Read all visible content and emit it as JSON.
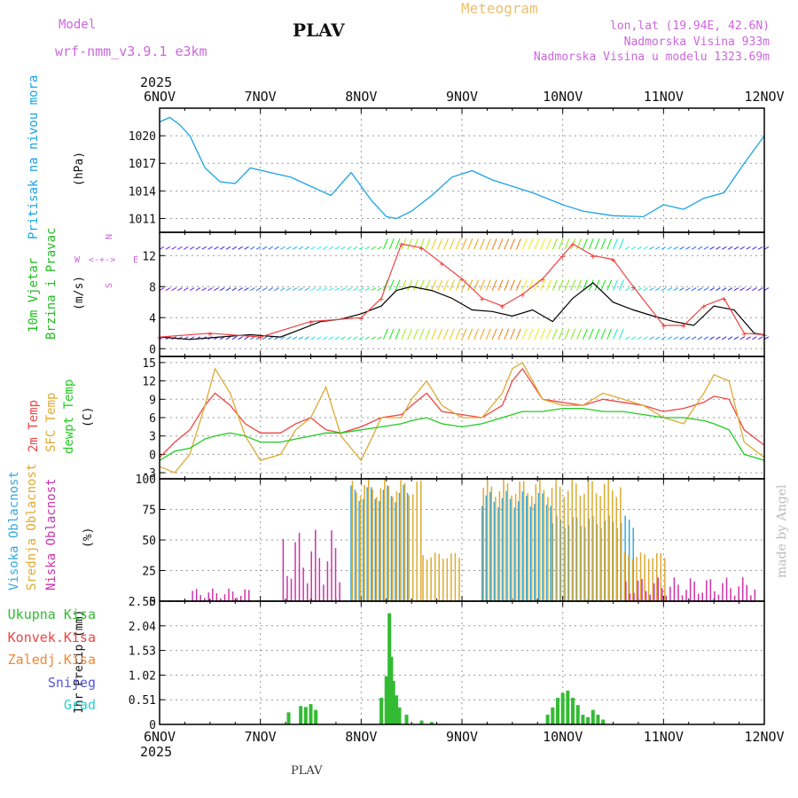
{
  "header": {
    "model_label": "Model",
    "model_name": "wrf-nmm_v3.9.1 e3km",
    "station": "PLAV",
    "title": "Meteogram",
    "lonlat": "lon,lat (19.94E, 42.6N)",
    "elevation": "Nadmorska Visina 933m",
    "model_elevation": "Nadmorska Visina u modelu 1323.69m",
    "footer_station": "PLAV",
    "credit": "made by Angel"
  },
  "colors": {
    "pressure": "#1aa3e6",
    "wind_label": "#22bb22",
    "temp2m": "#ee4444",
    "sfc_temp": "#ddaa33",
    "dewpt": "#22cc22",
    "high_cloud": "#33aadd",
    "mid_cloud": "#ddaa33",
    "low_cloud": "#cc33aa",
    "precip_total": "#33bb33",
    "precip_conv": "#ee4444",
    "precip_frozen": "#ee8833",
    "snow": "#5555dd",
    "hail": "#33cccc",
    "axis_label": "#cc66dd"
  },
  "axis": {
    "year": "2025",
    "days": [
      "6NOV",
      "7NOV",
      "8NOV",
      "9NOV",
      "10NOV",
      "11NOV",
      "12NOV"
    ]
  },
  "chart_data": [
    {
      "type": "line",
      "panel": "pressure",
      "title": "Pritisak na nivou mora",
      "ylabel": "(hPa)",
      "yticks": [
        "1020",
        "1017",
        "1014",
        "1011"
      ],
      "ylim": [
        1009.5,
        1023
      ],
      "x_days": [
        0,
        0.1,
        0.2,
        0.3,
        0.45,
        0.6,
        0.75,
        0.9,
        1.1,
        1.3,
        1.5,
        1.7,
        1.9,
        2.1,
        2.25,
        2.35,
        2.5,
        2.7,
        2.9,
        3.1,
        3.3,
        3.5,
        3.7,
        4.0,
        4.2,
        4.5,
        4.8,
        5.0,
        5.2,
        5.4,
        5.6,
        5.8,
        6.0
      ],
      "values": [
        1021.5,
        1022,
        1021.2,
        1020,
        1016.5,
        1015,
        1014.8,
        1016.5,
        1016,
        1015.5,
        1014.5,
        1013.5,
        1016,
        1013,
        1011.2,
        1011,
        1011.8,
        1013.5,
        1015.5,
        1016.2,
        1015.2,
        1014.5,
        1013.8,
        1012.5,
        1011.8,
        1011.3,
        1011.2,
        1012.5,
        1012,
        1013.2,
        1013.8,
        1017,
        1020
      ]
    },
    {
      "type": "line",
      "panel": "wind",
      "title": "10m Vjetar",
      "subtitle": "Brzina i Pravac",
      "ylabel": "(m/s)",
      "compass": [
        "N",
        "W",
        "E",
        "S"
      ],
      "yticks": [
        "12",
        "8",
        "4",
        "0"
      ],
      "ylim": [
        -1,
        15
      ],
      "x_days": [
        0,
        0.3,
        0.6,
        0.9,
        1.2,
        1.4,
        1.6,
        1.8,
        2.0,
        2.2,
        2.35,
        2.5,
        2.7,
        2.9,
        3.1,
        3.3,
        3.5,
        3.7,
        3.9,
        4.1,
        4.3,
        4.5,
        4.7,
        4.9,
        5.1,
        5.3,
        5.5,
        5.7,
        5.9,
        6.0
      ],
      "values": [
        1.5,
        1.2,
        1.5,
        1.8,
        1.5,
        2.5,
        3.5,
        3.8,
        4.5,
        5.5,
        7.5,
        8.0,
        7.5,
        6.5,
        5.0,
        4.8,
        4.2,
        5.0,
        3.5,
        6.5,
        8.5,
        6.0,
        5.0,
        4.2,
        3.5,
        3.0,
        5.5,
        5.0,
        2.0,
        1.8
      ],
      "gust_x_days": [
        0,
        0.5,
        1.0,
        1.5,
        2.0,
        2.2,
        2.4,
        2.6,
        2.8,
        3.0,
        3.2,
        3.4,
        3.6,
        3.8,
        4.0,
        4.1,
        4.3,
        4.5,
        4.7,
        5.0,
        5.2,
        5.4,
        5.6,
        5.8,
        6.0
      ],
      "gust_values": [
        1.5,
        2.0,
        1.5,
        3.5,
        4.0,
        6.5,
        13.5,
        13.0,
        11.0,
        9.0,
        6.5,
        5.5,
        7.0,
        9.0,
        12.0,
        13.5,
        12.0,
        11.5,
        8.0,
        3.0,
        3.0,
        5.5,
        6.5,
        2.0,
        1.8
      ]
    },
    {
      "type": "line",
      "panel": "temperature",
      "ylabel": "(C)",
      "yticks": [
        "15",
        "12",
        "9",
        "6",
        "3",
        "0",
        "-3"
      ],
      "ylim": [
        -4,
        16
      ],
      "x_days": [
        0,
        0.15,
        0.3,
        0.45,
        0.55,
        0.7,
        0.85,
        1.0,
        1.2,
        1.35,
        1.5,
        1.65,
        1.8,
        2.0,
        2.2,
        2.4,
        2.5,
        2.65,
        2.8,
        3.0,
        3.2,
        3.4,
        3.5,
        3.6,
        3.8,
        4.0,
        4.2,
        4.4,
        4.6,
        4.8,
        5.0,
        5.2,
        5.4,
        5.5,
        5.65,
        5.8,
        6.0
      ],
      "series": [
        {
          "name": "2m Temp",
          "values": [
            -0.5,
            2,
            4,
            8,
            10,
            8,
            5,
            3.5,
            3.5,
            5,
            6,
            4,
            3.5,
            4.5,
            6,
            6.5,
            8,
            10,
            7,
            6.5,
            6,
            8,
            12,
            14,
            9,
            8.5,
            8,
            9,
            8.5,
            8,
            7,
            7.5,
            8.5,
            9.5,
            9,
            4,
            1.5
          ]
        },
        {
          "name": "SFC Temp",
          "values": [
            -2,
            -3,
            0,
            8,
            14,
            10,
            3,
            -1,
            0,
            4,
            6,
            11,
            3,
            -1,
            6,
            6,
            9,
            12,
            8,
            6,
            6,
            10,
            14,
            15,
            9,
            8,
            8,
            10,
            9,
            8,
            6,
            5,
            10,
            13,
            12,
            2,
            -0.5
          ]
        },
        {
          "name": "dewpt Temp",
          "values": [
            -1,
            0.5,
            1,
            2.5,
            3,
            3.5,
            3,
            2,
            2,
            2.5,
            3,
            3.5,
            3.5,
            4,
            4.5,
            5,
            5.5,
            6,
            5,
            4.5,
            5,
            6,
            6.5,
            7,
            7,
            7.5,
            7.5,
            7,
            7,
            6.5,
            6,
            6,
            5.5,
            5,
            4,
            0,
            -1
          ]
        }
      ]
    },
    {
      "type": "bar",
      "panel": "clouds",
      "ylabel": "(%)",
      "yticks": [
        "100",
        "75",
        "50",
        "25",
        "0"
      ],
      "ylim": [
        0,
        100
      ],
      "series": [
        {
          "name": "Visoka Oblacnost",
          "segments": [
            [
              1.9,
              2.5,
              95
            ],
            [
              3.2,
              3.9,
              90
            ],
            [
              3.9,
              4.7,
              70
            ]
          ]
        },
        {
          "name": "Srednja Oblacnost",
          "segments": [
            [
              1.9,
              2.6,
              100
            ],
            [
              2.6,
              3.0,
              40
            ],
            [
              3.2,
              4.6,
              100
            ],
            [
              4.6,
              5.0,
              40
            ]
          ]
        },
        {
          "name": "Niska Oblacnost",
          "segments": [
            [
              0.3,
              0.9,
              8
            ],
            [
              1.2,
              1.8,
              45
            ],
            [
              4.6,
              5.9,
              15
            ]
          ]
        }
      ]
    },
    {
      "type": "bar",
      "panel": "precipitation",
      "ylabel": "1hr Precip (mm)",
      "yticks": [
        "2.55",
        "2.04",
        "1.53",
        "1.02",
        "0.51",
        "0"
      ],
      "ylim": [
        0,
        2.55
      ],
      "legend": [
        "Ukupna Kisa",
        "Konvek.Kisa",
        "Zaledj.Kisa",
        "Snijeg",
        "Grad"
      ],
      "x_days": [
        1.28,
        1.4,
        1.45,
        1.5,
        1.55,
        2.2,
        2.25,
        2.28,
        2.3,
        2.32,
        2.35,
        2.38,
        2.45,
        2.6,
        2.7,
        3.85,
        3.9,
        3.95,
        4.0,
        4.05,
        4.1,
        4.15,
        4.2,
        4.25,
        4.3,
        4.35,
        4.4
      ],
      "values": [
        0.25,
        0.38,
        0.36,
        0.42,
        0.3,
        0.55,
        1.0,
        2.3,
        1.4,
        0.9,
        0.6,
        0.35,
        0.2,
        0.08,
        0.05,
        0.2,
        0.35,
        0.55,
        0.65,
        0.7,
        0.55,
        0.4,
        0.2,
        0.15,
        0.3,
        0.2,
        0.1
      ]
    }
  ]
}
